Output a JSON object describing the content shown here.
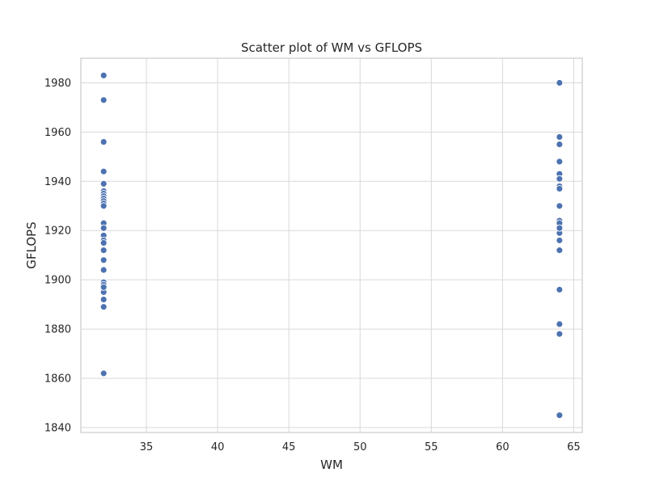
{
  "chart_data": {
    "type": "scatter",
    "title": "Scatter plot of WM vs GFLOPS",
    "xlabel": "WM",
    "ylabel": "GFLOPS",
    "xlim": [
      30.4,
      65.6
    ],
    "ylim": [
      1838,
      1990
    ],
    "xticks": [
      35,
      40,
      45,
      50,
      55,
      60,
      65
    ],
    "yticks": [
      1840,
      1860,
      1880,
      1900,
      1920,
      1940,
      1960,
      1980
    ],
    "grid": true,
    "color": "#4c72b0",
    "series": [
      {
        "x": [
          32,
          32,
          32,
          32,
          32,
          32,
          32,
          32,
          32,
          32,
          32,
          32,
          32,
          32,
          32,
          32,
          32,
          32,
          32,
          32,
          32,
          32,
          32,
          32,
          32,
          32,
          32,
          32,
          32,
          64,
          64,
          64,
          64,
          64,
          64,
          64,
          64,
          64,
          64,
          64,
          64,
          64,
          64,
          64,
          64,
          64,
          64,
          64,
          64,
          64
        ],
        "y": [
          1983,
          1973,
          1956,
          1944,
          1939,
          1936,
          1935,
          1934,
          1933,
          1932,
          1931,
          1930,
          1923,
          1921,
          1918,
          1916,
          1915,
          1912,
          1908,
          1904,
          1899,
          1898,
          1897,
          1896,
          1895,
          1892,
          1889,
          1862,
          1897,
          1980,
          1958,
          1955,
          1948,
          1943,
          1941,
          1938,
          1937,
          1930,
          1924,
          1922,
          1920,
          1919,
          1916,
          1912,
          1896,
          1882,
          1878,
          1845,
          1923,
          1921
        ]
      }
    ]
  }
}
